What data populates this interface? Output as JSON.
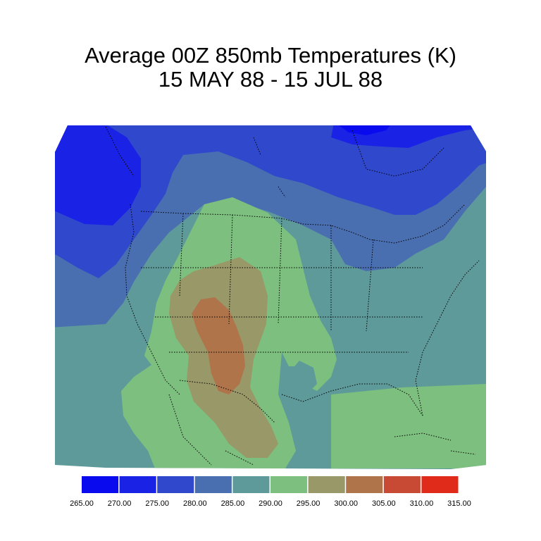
{
  "title": {
    "line1": "Average 00Z 850mb Temperatures (K)",
    "line2": "15 MAY 88 - 15 JUL 88"
  },
  "colorbar": {
    "labels": [
      "265.00",
      "270.00",
      "275.00",
      "280.00",
      "285.00",
      "290.00",
      "295.00",
      "300.00",
      "305.00",
      "310.00",
      "315.00"
    ],
    "colors": [
      "#0a0aef",
      "#1a22e6",
      "#3049cc",
      "#4a6fb0",
      "#5f9a9b",
      "#7dbf7e",
      "#999868",
      "#b0744a",
      "#c94a34",
      "#e02a1a"
    ]
  },
  "contour_fill_colors": {
    "lt270": "#1a22e6",
    "270_275": "#3049cc",
    "275_280": "#4a6fb0",
    "280_285": "#5f9a9b",
    "285_290": "#5f9a9b",
    "290_295": "#7dbf7e",
    "295_300": "#999868",
    "300_305": "#b0744a"
  }
}
